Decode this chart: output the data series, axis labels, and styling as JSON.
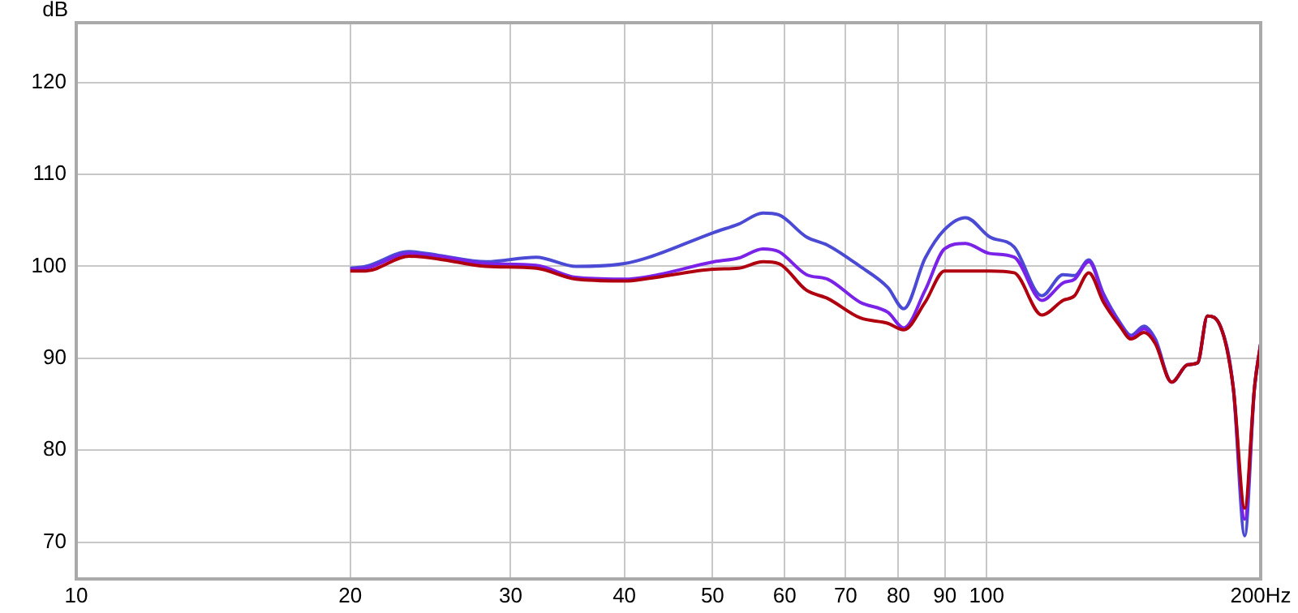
{
  "chart_data": {
    "type": "line",
    "ylabel": "dB",
    "log": "x",
    "grid": true,
    "marker": "none",
    "line_style": "solid",
    "x": [
      20,
      20.8,
      23.2,
      25.0,
      28.2,
      32.0,
      35.4,
      40.0,
      42.6,
      50.2,
      53.4,
      56.8,
      59.1,
      63.4,
      66.9,
      72.6,
      77.9,
      81.1,
      85.6,
      89.9,
      94.8,
      100.8,
      107.2,
      115.0,
      121.3,
      124.9,
      129.5,
      134.4,
      140.1,
      144.1,
      148.9,
      153.2,
      159.7,
      166.3,
      170.5,
      174.8,
      180.6,
      186.6,
      192.1,
      196.9,
      200
    ],
    "series": [
      {
        "color": "#4a4ad4",
        "values": [
          99.8,
          100,
          101.6,
          101.2,
          100.5,
          101,
          100,
          100.3,
          101,
          103.7,
          104.6,
          105.8,
          105.6,
          103.2,
          102.3,
          100,
          97.7,
          95.4,
          100.9,
          104,
          105.3,
          103.2,
          102.1,
          96.8,
          99.1,
          99,
          100.7,
          97,
          93.9,
          92.5,
          93.5,
          92.1,
          87.4,
          89.3,
          89.5,
          94.6,
          93.5,
          86.8,
          70.7,
          86.8,
          91.6
        ]
      },
      {
        "color": "#7a22e8",
        "values": [
          99.7,
          99.8,
          101.4,
          101.1,
          100.3,
          100.1,
          98.8,
          98.6,
          98.9,
          100.5,
          100.9,
          101.9,
          101.6,
          99.1,
          98.6,
          96.1,
          95,
          93.3,
          97.4,
          101.9,
          102.5,
          101.4,
          101,
          96.3,
          98.2,
          98.6,
          100.5,
          96.8,
          93.7,
          92.3,
          93.2,
          91.8,
          87.4,
          89.3,
          89.5,
          94.6,
          93.5,
          86.8,
          72.5,
          86.8,
          91.6
        ]
      },
      {
        "color": "#b0000f",
        "values": [
          99.5,
          99.5,
          101.1,
          100.8,
          100,
          99.8,
          98.6,
          98.4,
          98.7,
          99.7,
          99.8,
          100.5,
          100.3,
          97.4,
          96.5,
          94.4,
          93.8,
          93.1,
          96.1,
          99.5,
          99.5,
          99.5,
          99.3,
          94.7,
          96.3,
          96.8,
          99.3,
          96.1,
          93.5,
          92.1,
          92.8,
          91.6,
          87.4,
          89.3,
          89.5,
          94.6,
          93.5,
          86.8,
          73.7,
          86.8,
          91.6
        ]
      }
    ],
    "xlim": [
      10,
      200
    ],
    "xticks": [
      10,
      20,
      30,
      40,
      50,
      60,
      70,
      80,
      90,
      100,
      {
        "value": 200,
        "label": "200Hz"
      }
    ],
    "ylim": [
      66,
      126.5
    ],
    "yticks": [
      70,
      80,
      90,
      100,
      110,
      120
    ]
  }
}
